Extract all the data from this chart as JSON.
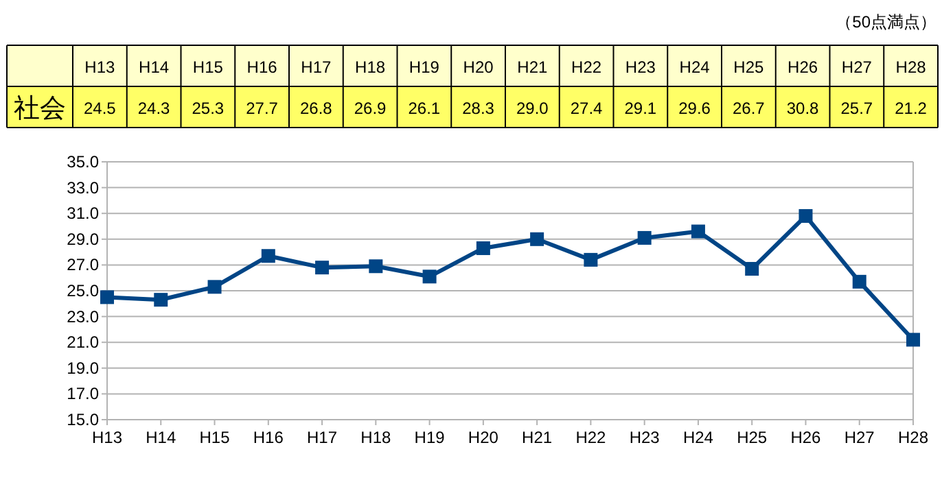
{
  "chart_data": {
    "type": "line",
    "categories": [
      "H13",
      "H14",
      "H15",
      "H16",
      "H17",
      "H18",
      "H19",
      "H20",
      "H21",
      "H22",
      "H23",
      "H24",
      "H25",
      "H26",
      "H27",
      "H28"
    ],
    "series": [
      {
        "name": "社会",
        "color": "#004586",
        "values": [
          24.5,
          24.3,
          25.3,
          27.7,
          26.8,
          26.9,
          26.1,
          28.3,
          29.0,
          27.4,
          29.1,
          29.6,
          26.7,
          30.8,
          25.7,
          21.2
        ],
        "value_labels": [
          "24.5",
          "24.3",
          "25.3",
          "27.7",
          "26.8",
          "26.9",
          "26.1",
          "28.3",
          "29.0",
          "27.4",
          "29.1",
          "29.6",
          "26.7",
          "30.8",
          "25.7",
          "21.2"
        ]
      }
    ],
    "annotations": [
      "（50点満点）"
    ],
    "ylim": [
      15,
      35
    ],
    "yticks": [
      {
        "value": 15,
        "label": "15.0"
      },
      {
        "value": 17,
        "label": "17.0"
      },
      {
        "value": 19,
        "label": "19.0"
      },
      {
        "value": 21,
        "label": "21.0"
      },
      {
        "value": 23,
        "label": "23.0"
      },
      {
        "value": 25,
        "label": "25.0"
      },
      {
        "value": 27,
        "label": "27.0"
      },
      {
        "value": 29,
        "label": "29.0"
      },
      {
        "value": 31,
        "label": "31.0"
      },
      {
        "value": 33,
        "label": "33.0"
      },
      {
        "value": 35,
        "label": "35.0"
      }
    ],
    "grid": "y",
    "marker": "square",
    "line_style": "solid"
  }
}
